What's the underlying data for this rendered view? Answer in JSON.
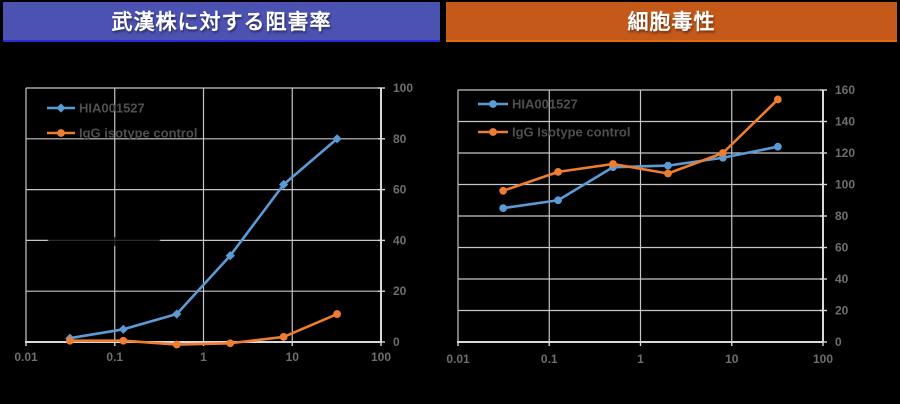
{
  "panels": [
    {
      "title": "武漢株に対する阻害率",
      "accent_color": "#4C52B2",
      "edge_color": "#2B2BD6"
    },
    {
      "title": "細胞毒性",
      "accent_color": "#C4591A",
      "edge_color": "#E06A10"
    }
  ],
  "chart_data": [
    {
      "type": "line",
      "title": "武漢株に対する阻害率",
      "x_scale": "log",
      "x": [
        0.03125,
        0.125,
        0.5,
        2,
        8,
        32
      ],
      "x_tick_labels": [
        "0.01",
        "0.1",
        "1",
        "10",
        "100"
      ],
      "x_tick_values": [
        0.01,
        0.1,
        1,
        10,
        100
      ],
      "ylim": [
        0,
        100
      ],
      "y_ticks": [
        0,
        20,
        40,
        60,
        80,
        100
      ],
      "grid": true,
      "legend_position": "top-left-inside",
      "series": [
        {
          "name": "HIA001527",
          "color": "#5B9BD5",
          "marker": "diamond",
          "values": [
            1.5,
            5,
            11,
            34,
            62,
            80
          ]
        },
        {
          "name": "IgG isotype control",
          "color": "#ED7D31",
          "marker": "circle",
          "values": [
            0.5,
            0.5,
            -1,
            -0.5,
            2,
            11
          ]
        }
      ]
    },
    {
      "type": "line",
      "title": "細胞毒性",
      "x_scale": "log",
      "x": [
        0.03125,
        0.125,
        0.5,
        2,
        8,
        32
      ],
      "x_tick_labels": [
        "0.01",
        "0.1",
        "1",
        "10",
        "100"
      ],
      "x_tick_values": [
        0.01,
        0.1,
        1,
        10,
        100
      ],
      "ylim": [
        0,
        160
      ],
      "y_ticks": [
        0,
        20,
        40,
        60,
        80,
        100,
        120,
        140,
        160
      ],
      "grid": true,
      "legend_position": "top-left-inside",
      "series": [
        {
          "name": "HIA001527",
          "color": "#5B9BD5",
          "marker": "circle",
          "values": [
            85,
            90,
            111,
            112,
            117,
            124
          ]
        },
        {
          "name": "IgG Isotype control",
          "color": "#ED7D31",
          "marker": "circle",
          "values": [
            96,
            108,
            113,
            107,
            120,
            154
          ]
        }
      ]
    }
  ],
  "colors": {
    "background": "#000000",
    "gridline": "#C6C6C6",
    "axis_line": "#D9D9D9",
    "tick_label": "#6E6E6E",
    "legend_text": "#4F4F4F",
    "title_text": "#FFFFFF"
  }
}
